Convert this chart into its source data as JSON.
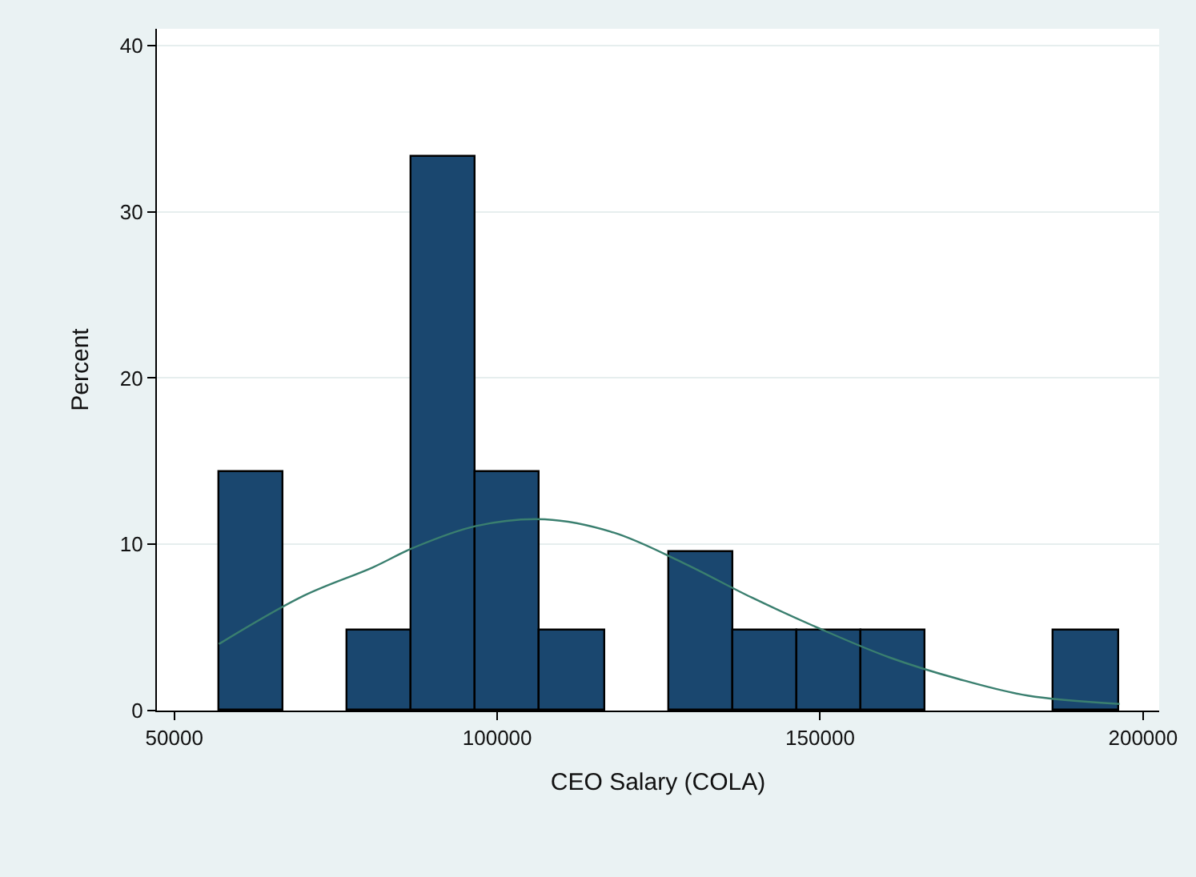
{
  "chart_data": {
    "type": "histogram",
    "xlabel": "CEO Salary (COLA)",
    "ylabel": "Percent",
    "bins": [
      56900,
      66850,
      76800,
      86750,
      96700,
      106650,
      116600,
      126550,
      136500,
      146450,
      156400,
      166350,
      176300,
      186250,
      196200
    ],
    "series": [
      {
        "color": "#1a476f",
        "values": [
          14.3,
          0,
          4.8,
          33.3,
          14.3,
          4.8,
          0,
          9.5,
          4.8,
          4.8,
          4.8,
          0,
          0,
          4.8
        ]
      },
      {
        "type": "line",
        "color": "#3a7f6f",
        "x": [
          56900,
          70000,
          80660,
          87070,
          96700,
          107370,
          118060,
          128700,
          139400,
          150100,
          160700,
          171400,
          182100,
          196370
        ],
        "values": [
          4.0,
          6.9,
          8.6,
          9.8,
          11.1,
          11.5,
          10.7,
          8.9,
          6.8,
          4.9,
          3.2,
          1.9,
          0.9,
          0.4
        ]
      }
    ],
    "xlim": [
      47300,
      202500
    ],
    "xticks": [
      50000,
      100000,
      150000,
      200000
    ],
    "ylim": [
      0,
      41
    ],
    "yticks": [
      0,
      10,
      20,
      30,
      40
    ],
    "grid": "y",
    "marker": "none",
    "line_style": "solid"
  }
}
